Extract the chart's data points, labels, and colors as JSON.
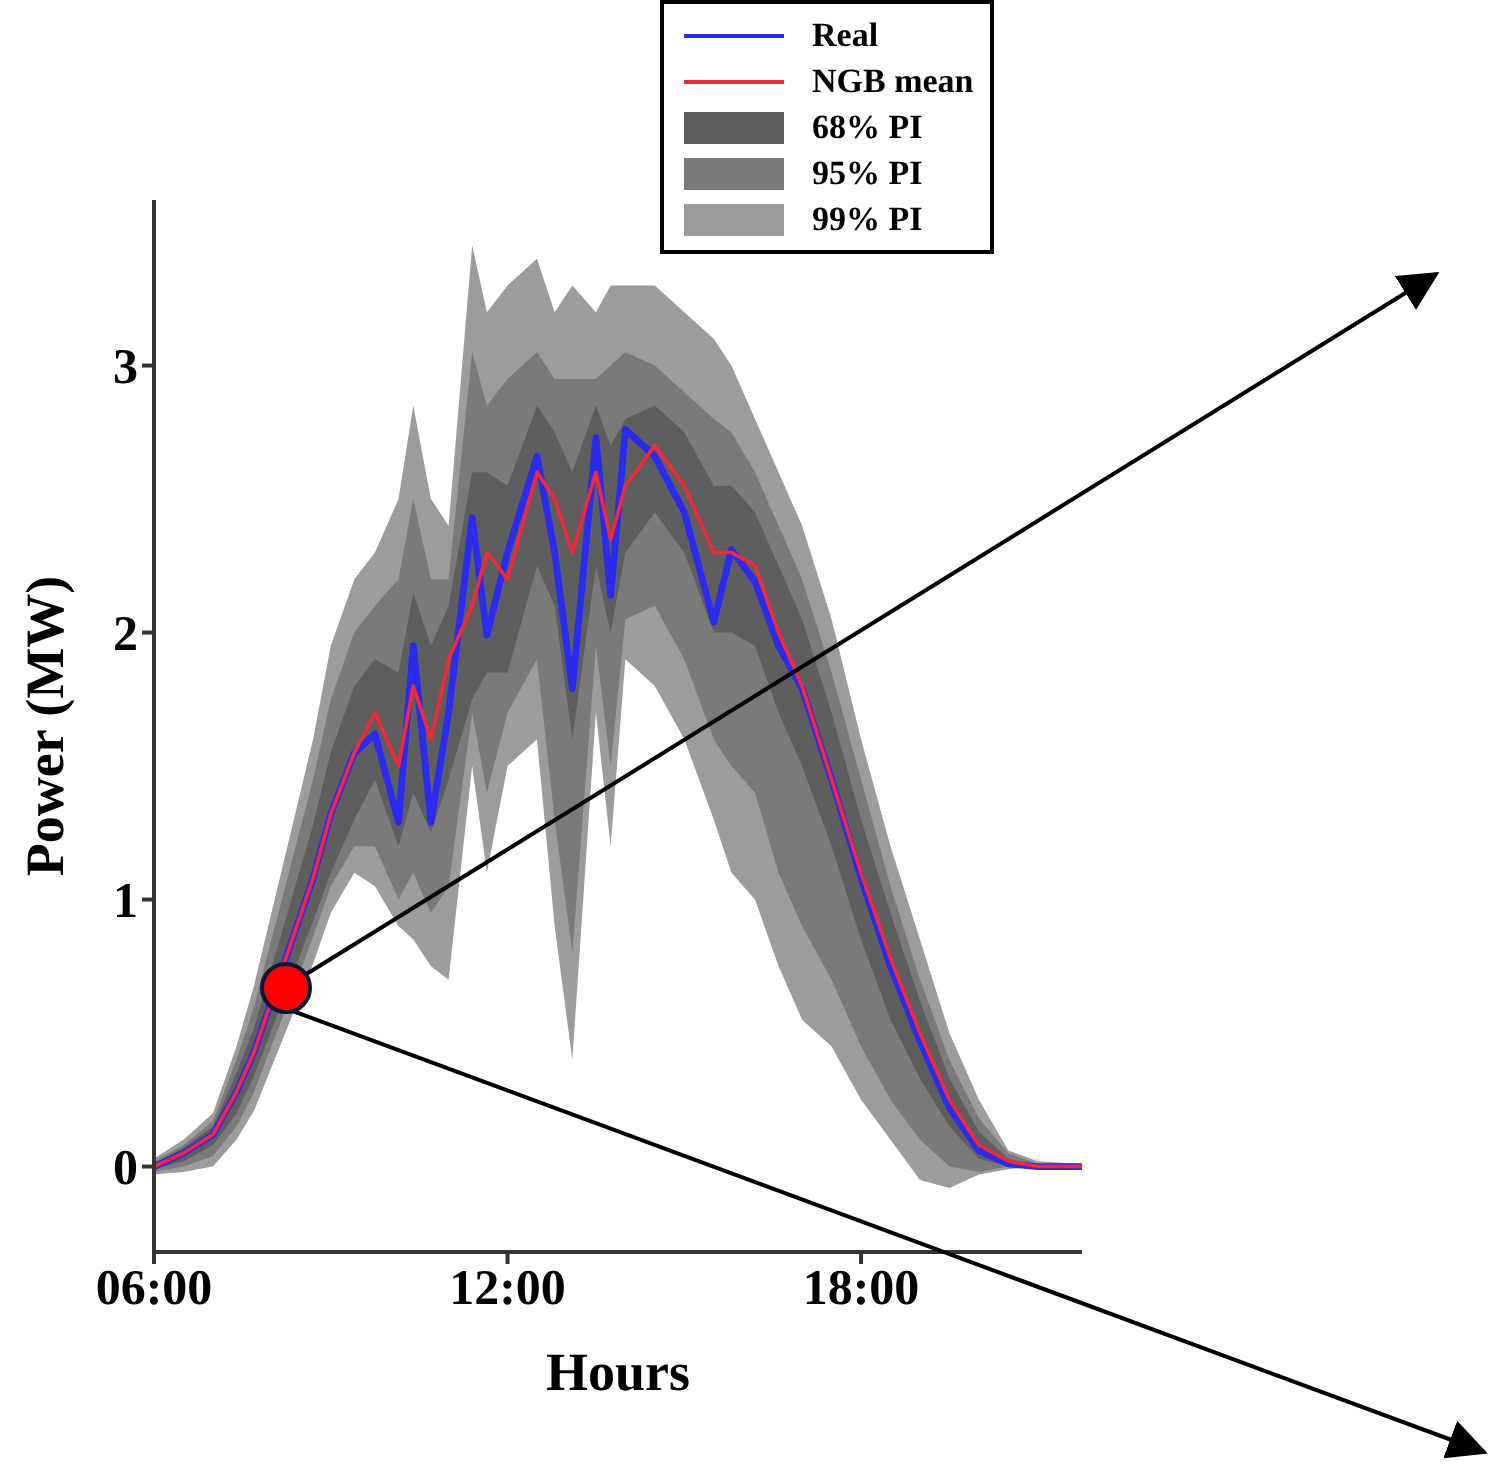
{
  "chart_data": {
    "type": "line",
    "xlabel": "Hours",
    "ylabel": "Power (MW)",
    "x": [
      6,
      6.5,
      7,
      7.4,
      7.7,
      8.7,
      9.0,
      9.4,
      9.75,
      10.15,
      10.4,
      10.7,
      11.0,
      11.4,
      11.65,
      12.0,
      12.5,
      12.8,
      13.1,
      13.5,
      13.75,
      14.0,
      14.5,
      15.0,
      15.5,
      15.8,
      16.2,
      16.6,
      17.0,
      17.5,
      18.0,
      18.5,
      19.0,
      19.5,
      20.0,
      20.5,
      21.0,
      21.75
    ],
    "series": [
      {
        "name": "Real",
        "type": "line",
        "color": "#2b2bf0",
        "values": [
          0,
          0.05,
          0.12,
          0.28,
          0.43,
          1.08,
          1.32,
          1.55,
          1.62,
          1.29,
          1.95,
          1.29,
          1.7,
          2.43,
          1.99,
          2.3,
          2.66,
          2.3,
          1.79,
          2.73,
          2.14,
          2.76,
          2.66,
          2.45,
          2.04,
          2.31,
          2.19,
          1.95,
          1.79,
          1.45,
          1.08,
          0.75,
          0.47,
          0.22,
          0.06,
          0.01,
          0,
          0
        ]
      },
      {
        "name": "NGB mean",
        "type": "line",
        "color": "#f02a3a",
        "values": [
          0,
          0.05,
          0.12,
          0.28,
          0.43,
          1.08,
          1.32,
          1.55,
          1.7,
          1.5,
          1.8,
          1.6,
          1.9,
          2.1,
          2.3,
          2.2,
          2.6,
          2.5,
          2.3,
          2.6,
          2.35,
          2.55,
          2.7,
          2.55,
          2.3,
          2.3,
          2.25,
          2.0,
          1.8,
          1.45,
          1.1,
          0.78,
          0.5,
          0.25,
          0.08,
          0.02,
          0,
          0
        ]
      },
      {
        "name": "68% PI",
        "type": "area",
        "color": "#5e5e5e",
        "values": [
          null,
          null,
          null,
          null,
          null,
          null,
          null,
          null,
          null,
          null,
          null,
          null,
          null,
          null,
          null,
          null,
          null,
          null,
          null,
          null,
          null,
          null,
          null,
          null,
          null,
          null,
          null,
          null,
          null,
          null,
          null,
          null,
          null,
          null,
          null,
          null,
          null,
          null
        ],
        "lower": [
          -0.01,
          0.02,
          0.08,
          0.2,
          0.34,
          0.92,
          1.1,
          1.3,
          1.45,
          1.2,
          1.4,
          1.25,
          1.45,
          1.75,
          1.85,
          1.85,
          2.25,
          2.1,
          1.6,
          2.25,
          2.0,
          2.3,
          2.45,
          2.3,
          2.0,
          2.0,
          1.95,
          1.7,
          1.5,
          1.2,
          0.85,
          0.55,
          0.33,
          0.15,
          0.03,
          0,
          0,
          0
        ],
        "upper": [
          0.01,
          0.07,
          0.15,
          0.35,
          0.52,
          1.28,
          1.55,
          1.8,
          1.9,
          1.85,
          2.15,
          1.95,
          2.1,
          2.6,
          2.6,
          2.55,
          2.85,
          2.75,
          2.6,
          2.85,
          2.7,
          2.8,
          2.85,
          2.75,
          2.55,
          2.55,
          2.45,
          2.25,
          2.05,
          1.7,
          1.3,
          0.95,
          0.62,
          0.33,
          0.13,
          0.03,
          0,
          0
        ]
      },
      {
        "name": "95% PI",
        "type": "area",
        "color": "#7a7a7a",
        "values": [
          null,
          null,
          null,
          null,
          null,
          null,
          null,
          null,
          null,
          null,
          null,
          null,
          null,
          null,
          null,
          null,
          null,
          null,
          null,
          null,
          null,
          null,
          null,
          null,
          null,
          null,
          null,
          null,
          null,
          null,
          null,
          null,
          null,
          null,
          null,
          null,
          null,
          null
        ],
        "lower": [
          -0.02,
          0,
          0.04,
          0.15,
          0.28,
          0.86,
          1.05,
          1.2,
          1.2,
          1.0,
          1.1,
          0.95,
          1.05,
          1.7,
          1.4,
          1.7,
          1.9,
          1.3,
          0.8,
          1.95,
          1.5,
          2.05,
          2.1,
          1.9,
          1.6,
          1.5,
          1.4,
          1.1,
          0.9,
          0.7,
          0.45,
          0.25,
          0.1,
          0,
          -0.02,
          0,
          0,
          0
        ],
        "upper": [
          0.02,
          0.08,
          0.17,
          0.4,
          0.6,
          1.45,
          1.75,
          2.0,
          2.1,
          2.2,
          2.5,
          2.2,
          2.2,
          3.05,
          2.85,
          2.95,
          3.05,
          2.95,
          2.95,
          2.95,
          3.0,
          3.05,
          3.0,
          2.9,
          2.8,
          2.75,
          2.6,
          2.4,
          2.2,
          1.85,
          1.45,
          1.05,
          0.7,
          0.4,
          0.18,
          0.05,
          0.01,
          0
        ]
      },
      {
        "name": "99% PI",
        "type": "area",
        "color": "#9c9c9c",
        "values": [
          null,
          null,
          null,
          null,
          null,
          null,
          null,
          null,
          null,
          null,
          null,
          null,
          null,
          null,
          null,
          null,
          null,
          null,
          null,
          null,
          null,
          null,
          null,
          null,
          null,
          null,
          null,
          null,
          null,
          null,
          null,
          null,
          null,
          null,
          null,
          null,
          null,
          null
        ],
        "lower": [
          -0.03,
          -0.02,
          0,
          0.1,
          0.21,
          0.76,
          0.95,
          1.1,
          1.05,
          0.9,
          0.85,
          0.75,
          0.7,
          1.5,
          1.1,
          1.5,
          1.6,
          0.9,
          0.4,
          1.7,
          1.2,
          1.9,
          1.8,
          1.6,
          1.3,
          1.1,
          1.0,
          0.75,
          0.55,
          0.45,
          0.25,
          0.1,
          -0.05,
          -0.08,
          -0.03,
          -0.01,
          0,
          0
        ],
        "upper": [
          0.03,
          0.1,
          0.2,
          0.45,
          0.68,
          1.6,
          1.95,
          2.2,
          2.3,
          2.5,
          2.85,
          2.5,
          2.4,
          3.45,
          3.2,
          3.3,
          3.4,
          3.2,
          3.3,
          3.2,
          3.3,
          3.3,
          3.3,
          3.2,
          3.1,
          3.0,
          2.8,
          2.6,
          2.4,
          2.05,
          1.6,
          1.2,
          0.85,
          0.5,
          0.25,
          0.06,
          0.02,
          0.01
        ]
      }
    ],
    "xlim": [
      6,
      21.75
    ],
    "xticks": [
      {
        "value": 6,
        "label": "06:00"
      },
      {
        "value": 12,
        "label": "12:00"
      },
      {
        "value": 18,
        "label": "18:00"
      }
    ],
    "ylim": [
      -0.32,
      3.62
    ],
    "yticks": [
      0,
      1,
      2,
      3
    ],
    "grid": false,
    "legend": "top right"
  }
}
